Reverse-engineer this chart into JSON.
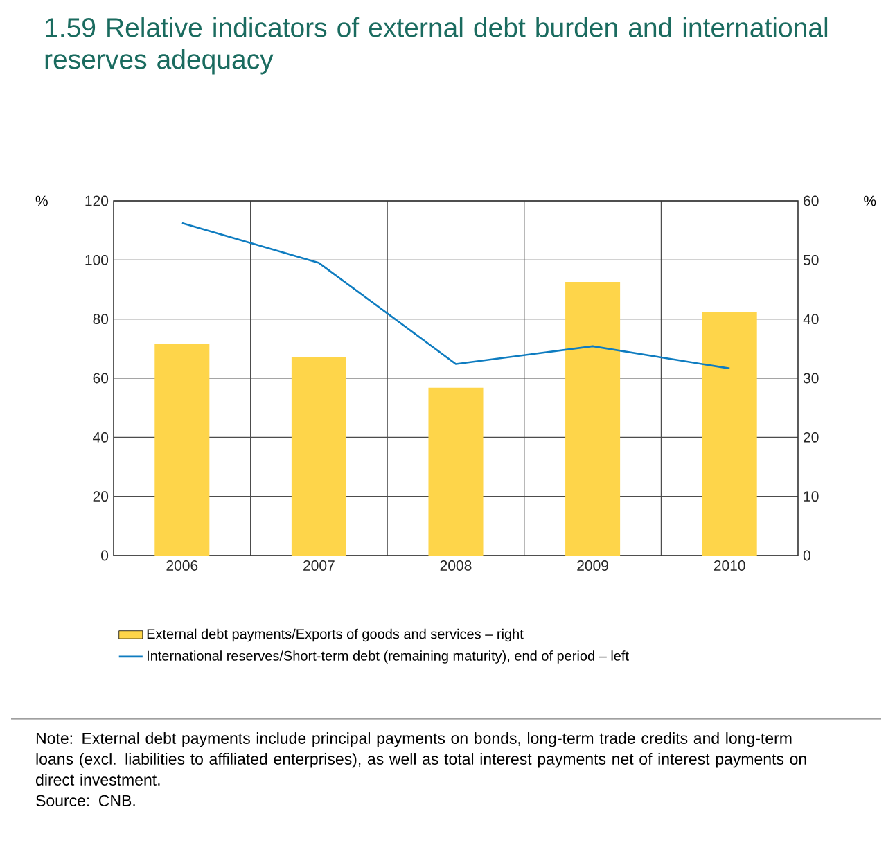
{
  "chart_data": {
    "type": "bar",
    "title": "1.59 Relative indicators of external debt burden and international reserves adequacy",
    "categories": [
      "2006",
      "2007",
      "2008",
      "2009",
      "2010"
    ],
    "series": [
      {
        "name": "External debt payments/Exports of goods and services – right",
        "axis": "y2",
        "color": "#fed54a",
        "values": [
          35.8,
          33.5,
          28.4,
          46.3,
          41.2
        ]
      },
      {
        "name": "International reserves/Short-term debt (remaining maturity), end of period – left",
        "type": "line",
        "axis": "y",
        "color": "#0e7cc0",
        "values": [
          112.5,
          99,
          64.8,
          70.8,
          63.3
        ]
      }
    ],
    "ylabel": "%",
    "y2label": "%",
    "ylim": [
      0,
      120
    ],
    "yticks": [
      0,
      20,
      40,
      60,
      80,
      100,
      120
    ],
    "y2lim": [
      0,
      60
    ],
    "y2ticks": [
      0,
      10,
      20,
      30,
      40,
      50,
      60
    ],
    "grid": true,
    "legend": "bottom",
    "marker": "none",
    "line_style": "solid",
    "annotations": [
      "Note: External debt payments include principal payments on bonds, long-term trade credits and long-term loans (excl. liabilities to affiliated enterprises), as well as total interest payments net of interest payments on direct investment.",
      "Source: CNB."
    ]
  }
}
